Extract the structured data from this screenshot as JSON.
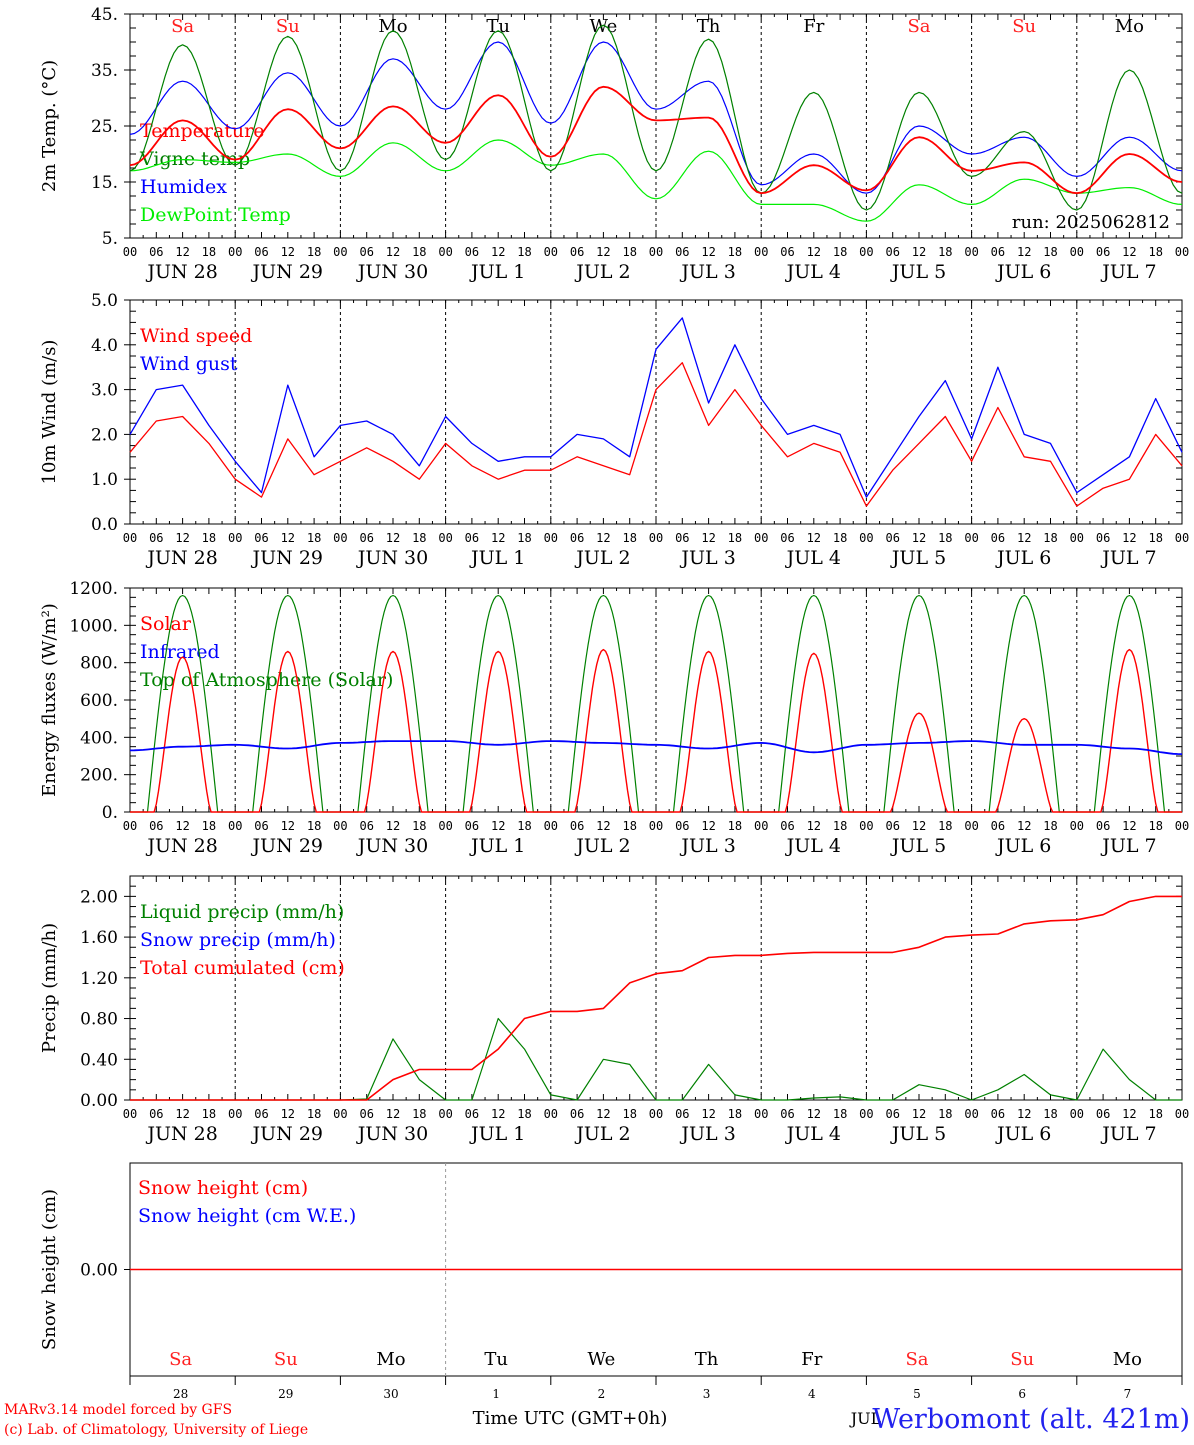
{
  "day_names": [
    "Sa",
    "Su",
    "Mo",
    "Tu",
    "We",
    "Th",
    "Fr",
    "Sa",
    "Su",
    "Mo"
  ],
  "weekend_color": "#ff2020",
  "weekday_color": "#000000",
  "date_labels": [
    "JUN 28",
    "JUN 29",
    "JUN 30",
    "JUL  1",
    "JUL  2",
    "JUL  3",
    "JUL  4",
    "JUL  5",
    "JUL  6",
    "JUL  7"
  ],
  "day_numbers": [
    "28",
    "29",
    "30",
    "1",
    "2",
    "3",
    "4",
    "5",
    "6",
    "7"
  ],
  "hour_labels": [
    "00",
    "06",
    "12",
    "18"
  ],
  "final_hour_label": "00",
  "run_label": "run: 2025062812",
  "footer": {
    "model": "MARv3.14 model forced by GFS",
    "lab": "(c) Lab. of Climatology, University of Liege",
    "time_axis": "Time UTC (GMT+0h)",
    "station": "Werbomont (alt. 421m)",
    "overlap_text": "JUL"
  },
  "chart_data": [
    {
      "type": "line",
      "ylabel": "2m Temp. (°C)",
      "ylim": [
        5,
        45
      ],
      "yticks": [
        "5.",
        "15.",
        "25.",
        "35.",
        "45."
      ],
      "x_hours": [
        0,
        12,
        24,
        36,
        48,
        60,
        72,
        84,
        96,
        108,
        120,
        132,
        144,
        156,
        168,
        180,
        192,
        204,
        216,
        228,
        240
      ],
      "series": [
        {
          "name": "Temperature",
          "color": "#ff0000",
          "values": [
            18,
            26,
            19,
            28,
            21,
            28.5,
            22,
            30.5,
            19.5,
            32,
            26,
            26.5,
            13,
            18,
            13.5,
            23,
            17,
            18.5,
            13,
            20,
            15
          ]
        },
        {
          "name": "Vigne temp",
          "color": "#008000",
          "values": [
            17,
            39.5,
            18,
            41,
            17,
            42,
            19,
            42,
            17,
            43,
            17,
            40.5,
            13,
            31,
            10,
            31,
            16,
            24,
            10,
            35,
            13
          ]
        },
        {
          "name": "Humidex",
          "color": "#0000ff",
          "values": [
            23.5,
            33,
            24.5,
            34.5,
            25,
            37,
            28,
            40,
            25.5,
            40,
            28,
            33,
            14.5,
            20,
            13,
            25,
            20,
            23,
            16,
            23,
            17
          ]
        },
        {
          "name": "DewPoint Temp",
          "color": "#00ee00",
          "values": [
            17,
            19,
            18.5,
            20,
            16,
            22,
            17,
            22.5,
            18,
            20,
            12,
            20.5,
            11,
            11,
            8,
            14.5,
            11,
            15.5,
            13,
            14,
            11
          ]
        }
      ]
    },
    {
      "type": "line",
      "ylabel": "10m Wind (m/s)",
      "ylim": [
        0,
        5
      ],
      "yticks": [
        "0.0",
        "1.0",
        "2.0",
        "3.0",
        "4.0",
        "5.0"
      ],
      "x_hours": [
        0,
        6,
        12,
        18,
        24,
        30,
        36,
        42,
        48,
        54,
        60,
        66,
        72,
        78,
        84,
        90,
        96,
        102,
        108,
        114,
        120,
        126,
        132,
        138,
        144,
        150,
        156,
        162,
        168,
        174,
        180,
        186,
        192,
        198,
        204,
        210,
        216,
        222,
        228,
        234,
        240
      ],
      "series": [
        {
          "name": "Wind speed",
          "color": "#ff0000",
          "values": [
            1.6,
            2.3,
            2.4,
            1.8,
            1.0,
            0.6,
            1.9,
            1.1,
            1.4,
            1.7,
            1.4,
            1.0,
            1.8,
            1.3,
            1.0,
            1.2,
            1.2,
            1.5,
            1.3,
            1.1,
            3.0,
            3.6,
            2.2,
            3.0,
            2.2,
            1.5,
            1.8,
            1.6,
            0.4,
            1.2,
            1.8,
            2.4,
            1.4,
            2.6,
            1.5,
            1.4,
            0.4,
            0.8,
            1.0,
            2.0,
            1.3
          ]
        },
        {
          "name": "Wind gust",
          "color": "#0000ff",
          "values": [
            2.0,
            3.0,
            3.1,
            2.2,
            1.4,
            0.7,
            3.1,
            1.5,
            2.2,
            2.3,
            2.0,
            1.3,
            2.4,
            1.8,
            1.4,
            1.5,
            1.5,
            2.0,
            1.9,
            1.5,
            3.9,
            4.6,
            2.7,
            4.0,
            2.8,
            2.0,
            2.2,
            2.0,
            0.6,
            1.5,
            2.4,
            3.2,
            1.9,
            3.5,
            2.0,
            1.8,
            0.7,
            1.1,
            1.5,
            2.8,
            1.6
          ]
        }
      ]
    },
    {
      "type": "line",
      "ylabel": "Energy fluxes (W/m²)",
      "ylim": [
        0,
        1200
      ],
      "yticks": [
        "0.",
        "200.",
        "400.",
        "600.",
        "800.",
        "1000.",
        "1200."
      ],
      "day_peaks": {
        "toa_peak": 1160,
        "solar_peaks": [
          830,
          860,
          860,
          860,
          870,
          860,
          850,
          530,
          500,
          870
        ],
        "infrared": [
          330,
          350,
          360,
          340,
          370,
          380,
          380,
          360,
          380,
          370,
          360,
          340,
          370,
          320,
          360,
          370,
          380,
          360,
          360,
          340,
          310
        ]
      },
      "series": [
        {
          "name": "Solar",
          "color": "#ff0000"
        },
        {
          "name": "Infrared",
          "color": "#0000ff"
        },
        {
          "name": "Top of Atmosphere (Solar)",
          "color": "#008000"
        }
      ]
    },
    {
      "type": "line",
      "ylabel": "Precip (mm/h)",
      "ylim": [
        0,
        2.2
      ],
      "yticks": [
        "0.00",
        "0.40",
        "0.80",
        "1.20",
        "1.60",
        "2.00"
      ],
      "x_hours": [
        0,
        48,
        54,
        60,
        66,
        72,
        78,
        84,
        90,
        96,
        102,
        108,
        114,
        120,
        126,
        132,
        138,
        144,
        150,
        156,
        162,
        168,
        174,
        180,
        186,
        192,
        198,
        204,
        210,
        216,
        222,
        228,
        234,
        240
      ],
      "series": [
        {
          "name": "Liquid precip (mm/h)",
          "color": "#008000",
          "values": [
            0,
            0,
            0.01,
            0.6,
            0.2,
            0,
            0,
            0.8,
            0.5,
            0.05,
            0,
            0.4,
            0.35,
            0,
            0,
            0.35,
            0.05,
            0,
            0,
            0.02,
            0.03,
            0,
            0,
            0.15,
            0.1,
            0,
            0.1,
            0.25,
            0.05,
            0,
            0.5,
            0.2,
            0,
            0
          ]
        },
        {
          "name": "Snow precip (mm/h)",
          "color": "#0000ff",
          "values": []
        },
        {
          "name": "Total cumulated (cm)",
          "color": "#ff0000",
          "values": [
            0,
            0,
            0,
            0.2,
            0.3,
            0.3,
            0.3,
            0.5,
            0.8,
            0.87,
            0.87,
            0.9,
            1.15,
            1.24,
            1.27,
            1.4,
            1.42,
            1.42,
            1.44,
            1.45,
            1.45,
            1.45,
            1.45,
            1.5,
            1.6,
            1.62,
            1.63,
            1.73,
            1.76,
            1.77,
            1.82,
            1.95,
            2.0,
            2.0
          ]
        }
      ]
    },
    {
      "type": "line",
      "ylabel": "Snow height (cm)",
      "ylim": [
        -1,
        1
      ],
      "yticks": [
        "0.00"
      ],
      "series": [
        {
          "name": "Snow height (cm)",
          "color": "#ff0000",
          "values": [
            0,
            0
          ]
        },
        {
          "name": "Snow height (cm W.E.)",
          "color": "#0000ff",
          "values": []
        }
      ]
    }
  ]
}
